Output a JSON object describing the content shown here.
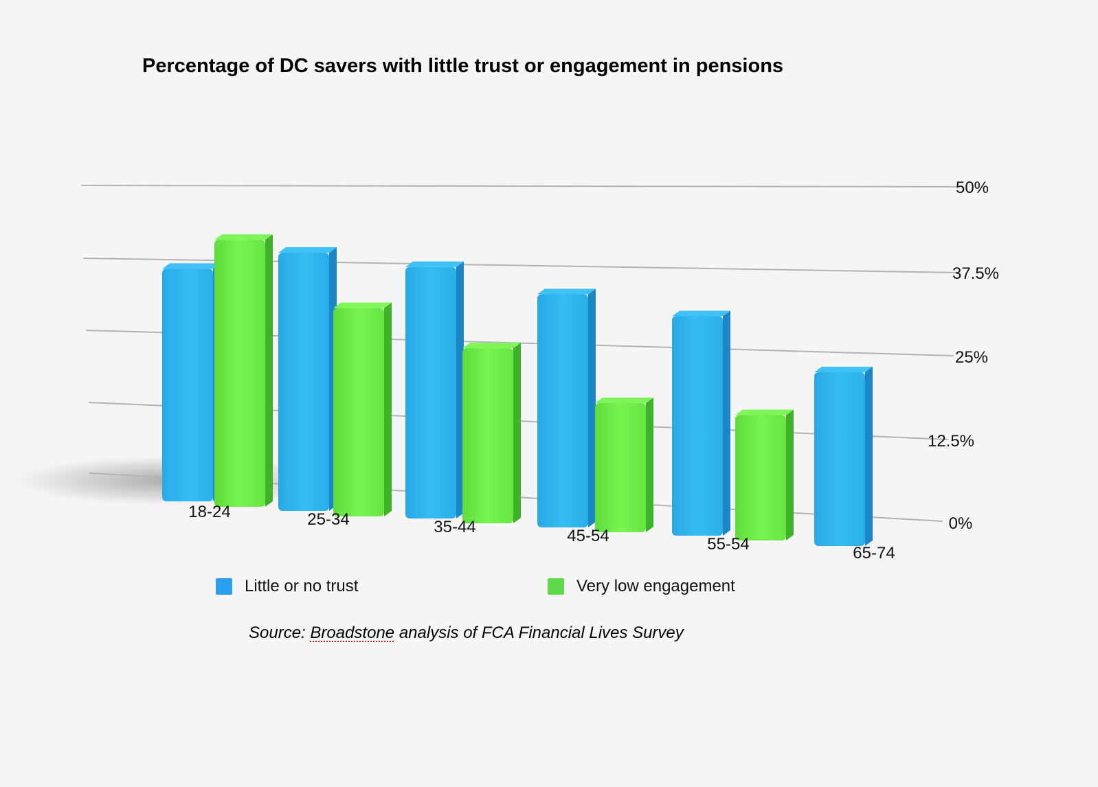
{
  "chart_data": {
    "type": "bar",
    "title": "Percentage of DC savers with little trust or engagement in pensions",
    "categories": [
      "18-24",
      "25-34",
      "35-44",
      "45-54",
      "55-54",
      "65-74"
    ],
    "series": [
      {
        "name": "Little or no trust",
        "color": "#2fb6f0",
        "values": [
          36,
          39,
          37,
          33,
          30,
          22
        ]
      },
      {
        "name": "Very low engagement",
        "color": "#6ef04a",
        "values": [
          41,
          30,
          24,
          16,
          15,
          null
        ]
      }
    ],
    "y_ticks": [
      "0%",
      "12.5%",
      "25%",
      "37.5%",
      "50%"
    ],
    "ylim": [
      0,
      50
    ],
    "grid": true,
    "legend_position": "bottom",
    "chart_style": "3d-perspective"
  },
  "source": {
    "prefix": "Source: ",
    "flagged_word": "Broadstone",
    "suffix": " analysis of FCA Financial Lives Survey"
  }
}
